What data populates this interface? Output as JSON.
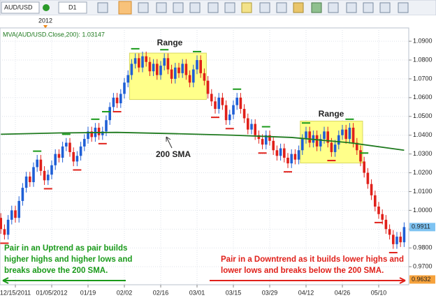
{
  "chart_data": {
    "type": "candlestick",
    "symbol": "AUD/USD",
    "timeframe": "D1",
    "indicator_label": "MVA(AUD/USD.Close,200): 1.03147",
    "year_marker": "2012",
    "annotations": {
      "range_1": "Range",
      "range_2": "Range",
      "sma": "200 SMA",
      "uptrend": [
        "Pair in an Uptrend as pair builds",
        "higher highs and higher lows and",
        "breaks above the 200 SMA."
      ],
      "downtrend": [
        "Pair in a Downtrend as it builds lower highs and",
        "lower lows and breaks below the 200  SMA."
      ]
    },
    "up_color": "#1f5fd6",
    "down_color": "#e0201a",
    "sma_color": "#1f7a1f",
    "grid": true,
    "xlim": [
      -0.23,
      112.27
    ],
    "ylim": [
      0.9604,
      1.0971
    ],
    "xticks": [
      {
        "value": 4,
        "label": "12/15/2011"
      },
      {
        "value": 14,
        "label": "01/05/2012"
      },
      {
        "value": 24,
        "label": "01/19"
      },
      {
        "value": 34,
        "label": "02/02"
      },
      {
        "value": 44,
        "label": "02/16"
      },
      {
        "value": 54,
        "label": "03/01"
      },
      {
        "value": 64,
        "label": "03/15"
      },
      {
        "value": 74,
        "label": "03/29"
      },
      {
        "value": 84,
        "label": "04/12"
      },
      {
        "value": 94,
        "label": "04/26"
      },
      {
        "value": 104,
        "label": "05/10"
      }
    ],
    "yticks": [
      {
        "value": 0.97,
        "label": "0.9700"
      },
      {
        "value": 0.98,
        "label": "0.9800"
      },
      {
        "value": 0.99,
        "label": "0.9900"
      },
      {
        "value": 1.0,
        "label": "1.0000"
      },
      {
        "value": 1.01,
        "label": "1.0100"
      },
      {
        "value": 1.02,
        "label": "1.0200"
      },
      {
        "value": 1.03,
        "label": "1.0300"
      },
      {
        "value": 1.04,
        "label": "1.0400"
      },
      {
        "value": 1.05,
        "label": "1.0500"
      },
      {
        "value": 1.06,
        "label": "1.0600"
      },
      {
        "value": 1.07,
        "label": "1.0700"
      },
      {
        "value": 1.08,
        "label": "1.0800"
      },
      {
        "value": 1.09,
        "label": "1.0900"
      }
    ],
    "ohlc": [
      [
        0.996,
        0.9985,
        0.9875,
        0.99
      ],
      [
        0.99,
        0.9925,
        0.9845,
        0.987
      ],
      [
        0.987,
        0.9975,
        0.9845,
        0.995
      ],
      [
        0.995,
        1.0025,
        0.9925,
        1.0
      ],
      [
        1.0,
        1.0025,
        0.9935,
        0.996
      ],
      [
        0.996,
        1.0075,
        0.9935,
        1.005
      ],
      [
        1.005,
        1.0145,
        1.0025,
        1.012
      ],
      [
        1.012,
        1.0205,
        1.0095,
        1.018
      ],
      [
        1.018,
        1.0205,
        1.0125,
        1.015
      ],
      [
        1.015,
        1.0255,
        1.0125,
        1.023
      ],
      [
        1.023,
        1.0295,
        1.0205,
        1.027
      ],
      [
        1.027,
        1.0295,
        1.0185,
        1.021
      ],
      [
        1.021,
        1.0235,
        1.0135,
        1.016
      ],
      [
        1.016,
        1.0215,
        1.0135,
        1.019
      ],
      [
        1.019,
        1.0265,
        1.0165,
        1.024
      ],
      [
        1.024,
        1.0325,
        1.0215,
        1.03
      ],
      [
        1.03,
        1.0325,
        1.0255,
        1.028
      ],
      [
        1.028,
        1.0365,
        1.0255,
        1.034
      ],
      [
        1.034,
        1.0385,
        1.0315,
        1.036
      ],
      [
        1.036,
        1.0385,
        1.0285,
        1.031
      ],
      [
        1.031,
        1.0335,
        1.0235,
        1.026
      ],
      [
        1.026,
        1.0315,
        1.0235,
        1.029
      ],
      [
        1.029,
        1.0365,
        1.0265,
        1.034
      ],
      [
        1.034,
        1.0405,
        1.0315,
        1.038
      ],
      [
        1.038,
        1.0445,
        1.0355,
        1.042
      ],
      [
        1.042,
        1.0445,
        1.0365,
        1.039
      ],
      [
        1.039,
        1.0465,
        1.0365,
        1.044
      ],
      [
        1.044,
        1.0465,
        1.0375,
        1.04
      ],
      [
        1.04,
        1.0445,
        1.0375,
        1.042
      ],
      [
        1.042,
        1.0505,
        1.0395,
        1.048
      ],
      [
        1.048,
        1.0575,
        1.0455,
        1.055
      ],
      [
        1.055,
        1.0625,
        1.0525,
        1.06
      ],
      [
        1.06,
        1.0625,
        1.0545,
        1.057
      ],
      [
        1.057,
        1.0645,
        1.0545,
        1.062
      ],
      [
        1.062,
        1.0705,
        1.0595,
        1.068
      ],
      [
        1.068,
        1.0745,
        1.0655,
        1.072
      ],
      [
        1.072,
        1.0805,
        1.0695,
        1.078
      ],
      [
        1.078,
        1.0835,
        1.0755,
        1.081
      ],
      [
        1.081,
        1.0835,
        1.0735,
        1.076
      ],
      [
        1.076,
        1.0845,
        1.0735,
        1.082
      ],
      [
        1.082,
        1.0845,
        1.0765,
        1.079
      ],
      [
        1.079,
        1.0815,
        1.0715,
        1.074
      ],
      [
        1.074,
        1.0805,
        1.0715,
        1.078
      ],
      [
        1.078,
        1.0805,
        1.0695,
        1.072
      ],
      [
        1.072,
        1.0795,
        1.0695,
        1.077
      ],
      [
        1.077,
        1.0835,
        1.0745,
        1.081
      ],
      [
        1.081,
        1.0835,
        1.0725,
        1.075
      ],
      [
        1.075,
        1.0775,
        1.0675,
        1.07
      ],
      [
        1.07,
        1.0785,
        1.0675,
        1.076
      ],
      [
        1.076,
        1.0785,
        1.0705,
        1.073
      ],
      [
        1.073,
        1.0805,
        1.0705,
        1.078
      ],
      [
        1.078,
        1.0805,
        1.0695,
        1.072
      ],
      [
        1.072,
        1.0745,
        1.0655,
        1.068
      ],
      [
        1.068,
        1.0775,
        1.0655,
        1.075
      ],
      [
        1.075,
        1.0825,
        1.0725,
        1.08
      ],
      [
        1.08,
        1.0825,
        1.0705,
        1.073
      ],
      [
        1.073,
        1.0755,
        1.0665,
        1.069
      ],
      [
        1.069,
        1.0715,
        1.0595,
        1.062
      ],
      [
        1.062,
        1.0645,
        1.0555,
        1.058
      ],
      [
        1.058,
        1.0605,
        1.0515,
        1.054
      ],
      [
        1.054,
        1.0625,
        1.0515,
        1.06
      ],
      [
        1.06,
        1.0625,
        1.0535,
        1.056
      ],
      [
        1.056,
        1.0585,
        1.0455,
        1.048
      ],
      [
        1.048,
        1.0535,
        1.0455,
        1.051
      ],
      [
        1.051,
        1.0585,
        1.0485,
        1.056
      ],
      [
        1.056,
        1.0625,
        1.0535,
        1.06
      ],
      [
        1.06,
        1.0625,
        1.0515,
        1.054
      ],
      [
        1.054,
        1.0565,
        1.0465,
        1.049
      ],
      [
        1.049,
        1.0515,
        1.0405,
        1.043
      ],
      [
        1.043,
        1.0485,
        1.0405,
        1.046
      ],
      [
        1.046,
        1.0485,
        1.0375,
        1.04
      ],
      [
        1.04,
        1.0425,
        1.0355,
        1.038
      ],
      [
        1.038,
        1.0405,
        1.0325,
        1.035
      ],
      [
        1.035,
        1.0425,
        1.0325,
        1.04
      ],
      [
        1.04,
        1.0425,
        1.0345,
        1.037
      ],
      [
        1.037,
        1.0395,
        1.0295,
        1.032
      ],
      [
        1.032,
        1.0345,
        1.0265,
        1.029
      ],
      [
        1.029,
        1.0355,
        1.0265,
        1.033
      ],
      [
        1.033,
        1.0355,
        1.0255,
        1.028
      ],
      [
        1.028,
        1.0305,
        1.0225,
        1.025
      ],
      [
        1.025,
        1.0325,
        1.0225,
        1.03
      ],
      [
        1.03,
        1.0325,
        1.0245,
        1.027
      ],
      [
        1.027,
        1.0345,
        1.0245,
        1.032
      ],
      [
        1.032,
        1.0405,
        1.0295,
        1.038
      ],
      [
        1.038,
        1.0445,
        1.0355,
        1.042
      ],
      [
        1.042,
        1.0445,
        1.0335,
        1.036
      ],
      [
        1.036,
        1.0425,
        1.0335,
        1.04
      ],
      [
        1.04,
        1.0425,
        1.0315,
        1.034
      ],
      [
        1.034,
        1.0405,
        1.0315,
        1.038
      ],
      [
        1.038,
        1.0445,
        1.0355,
        1.042
      ],
      [
        1.042,
        1.0445,
        1.0335,
        1.036
      ],
      [
        1.036,
        1.0385,
        1.0285,
        1.031
      ],
      [
        1.031,
        1.0375,
        1.0285,
        1.035
      ],
      [
        1.035,
        1.0425,
        1.0325,
        1.04
      ],
      [
        1.04,
        1.0455,
        1.0375,
        1.043
      ],
      [
        1.043,
        1.0455,
        1.0355,
        1.038
      ],
      [
        1.038,
        1.0465,
        1.0355,
        1.044
      ],
      [
        1.044,
        1.0465,
        1.0335,
        1.036
      ],
      [
        1.036,
        1.0385,
        1.0295,
        1.032
      ],
      [
        1.032,
        1.0345,
        1.0235,
        1.026
      ],
      [
        1.026,
        1.0285,
        1.0175,
        1.02
      ],
      [
        1.02,
        1.0225,
        1.0115,
        1.014
      ],
      [
        1.014,
        1.0165,
        1.0055,
        1.008
      ],
      [
        1.008,
        1.0105,
        0.9995,
        1.002
      ],
      [
        1.002,
        1.0045,
        0.9955,
        0.998
      ],
      [
        0.998,
        1.0005,
        0.9925,
        0.995
      ],
      [
        0.995,
        0.9975,
        0.9875,
        0.99
      ],
      [
        0.99,
        0.9925,
        0.9845,
        0.987
      ],
      [
        0.987,
        0.9895,
        0.9795,
        0.982
      ],
      [
        0.982,
        0.9885,
        0.9795,
        0.986
      ],
      [
        0.986,
        0.9885,
        0.9805,
        0.983
      ],
      [
        0.983,
        0.9936,
        0.9805,
        0.9911
      ]
    ],
    "sma": {
      "x": [
        0,
        16,
        32,
        48,
        64,
        80,
        96,
        111
      ],
      "values": [
        1.0405,
        1.0412,
        1.0415,
        1.0408,
        1.04,
        1.0388,
        1.036,
        1.032
      ]
    },
    "high_markers": {
      "x": [
        10,
        18,
        26,
        29,
        37,
        45,
        54,
        65,
        73,
        84,
        96,
        100
      ],
      "values": [
        1.0315,
        1.0405,
        1.0485,
        1.0525,
        1.086,
        1.0855,
        1.0845,
        1.0645,
        1.0445,
        1.0465,
        1.0485,
        1.0305
      ]
    },
    "low_markers": {
      "x": [
        1,
        13,
        21,
        28,
        32,
        59,
        63,
        72,
        79,
        91,
        104,
        108
      ],
      "values": [
        0.9825,
        1.0115,
        1.0215,
        1.0355,
        1.0525,
        1.0495,
        1.0435,
        1.0305,
        1.0205,
        1.0265,
        0.9935,
        0.9775
      ]
    },
    "range_boxes": [
      {
        "x": [
          36,
          56
        ],
        "y": [
          1.059,
          1.0837
        ]
      },
      {
        "x": [
          83,
          99
        ],
        "y": [
          1.0252,
          1.0475
        ]
      }
    ],
    "last_price": 0.9911,
    "marker_price": 0.9632
  }
}
